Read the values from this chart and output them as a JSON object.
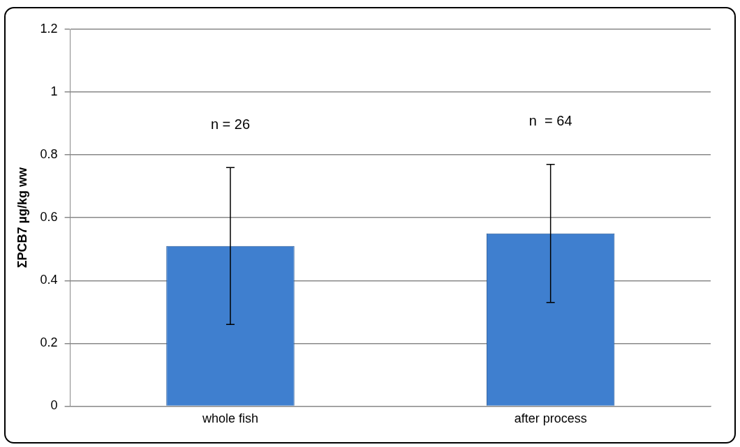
{
  "chart_data": {
    "type": "bar",
    "ylabel": "ΣPCB7 µg/kg ww",
    "categories": [
      "whole fish",
      "after process"
    ],
    "series": [
      {
        "color": "#3f7fcf",
        "values": [
          0.51,
          0.55
        ],
        "errors": [
          0.25,
          0.22
        ]
      }
    ],
    "ylim": [
      0,
      1.2
    ],
    "yticks": [
      0,
      0.2,
      0.4,
      0.6,
      0.8,
      1,
      1.2
    ],
    "grid": "y",
    "legend": false,
    "annotations": [
      "n = 26",
      "n  = 64"
    ]
  }
}
